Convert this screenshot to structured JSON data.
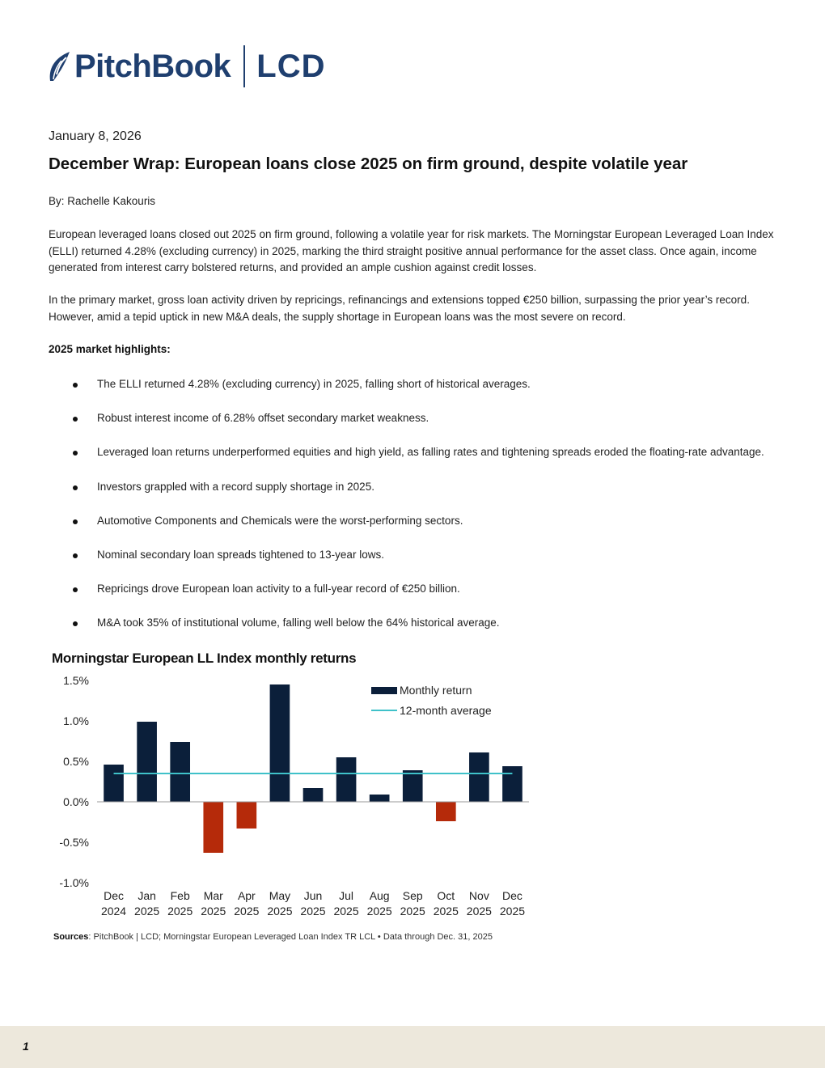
{
  "header": {
    "brand": "PitchBook",
    "product": "LCD",
    "brand_color": "#1f3f6f"
  },
  "article": {
    "date": "January 8, 2026",
    "title": "December Wrap: European loans close 2025 on firm ground, despite volatile year",
    "byline": "By: Rachelle Kakouris",
    "paragraphs": [
      "European leveraged loans closed out 2025 on firm ground, following a volatile year for risk markets. The Morningstar European Leveraged Loan Index (ELLI) returned 4.28% (excluding currency) in 2025, marking the third straight positive annual performance for the asset class. Once again, income generated from interest carry bolstered returns, and provided an ample cushion against credit losses.",
      "In the primary market, gross loan activity driven by repricings, refinancings and extensions topped €250 billion, surpassing the prior year’s record. However, amid a tepid uptick in new M&A deals, the supply shortage in European loans was the most severe on record."
    ],
    "highlights_heading": "2025 market highlights:",
    "highlights": [
      "The ELLI returned 4.28% (excluding currency) in 2025, falling short of historical averages.",
      "Robust interest income of 6.28% offset secondary market weakness.",
      "Leveraged loan returns underperformed equities and high yield, as falling rates and tightening spreads eroded the floating-rate advantage.",
      "Investors grappled with a record supply shortage in 2025.",
      "Automotive Components and Chemicals were the worst-performing sectors.",
      "Nominal secondary loan spreads tightened to 13-year lows.",
      "Repricings drove European loan activity to a full-year record of €250 billion.",
      "M&A took 35% of institutional volume, falling well below the 64% historical average."
    ]
  },
  "chart_data": {
    "type": "bar",
    "title": "Morningstar European LL Index monthly returns",
    "categories": [
      [
        "Dec",
        "2024"
      ],
      [
        "Jan",
        "2025"
      ],
      [
        "Feb",
        "2025"
      ],
      [
        "Mar",
        "2025"
      ],
      [
        "Apr",
        "2025"
      ],
      [
        "May",
        "2025"
      ],
      [
        "Jun",
        "2025"
      ],
      [
        "Jul",
        "2025"
      ],
      [
        "Aug",
        "2025"
      ],
      [
        "Sep",
        "2025"
      ],
      [
        "Oct",
        "2025"
      ],
      [
        "Nov",
        "2025"
      ],
      [
        "Dec",
        "2025"
      ]
    ],
    "series": [
      {
        "name": "Monthly return",
        "values": [
          0.46,
          0.99,
          0.74,
          -0.63,
          -0.33,
          1.45,
          0.17,
          0.55,
          0.09,
          0.39,
          -0.24,
          0.61,
          0.44
        ],
        "positive_color": "#0b1f3a",
        "negative_color": "#b52a0a"
      },
      {
        "name": "12-month average",
        "type": "line",
        "value": 0.35,
        "color": "#3fc1c9"
      }
    ],
    "ylim": [
      -1.0,
      1.5
    ],
    "yticks": [
      "1.5%",
      "1.0%",
      "0.5%",
      "0.0%",
      "-0.5%",
      "-1.0%"
    ],
    "ytick_values": [
      1.5,
      1.0,
      0.5,
      0.0,
      -0.5,
      -1.0
    ],
    "legend_position": "top-right",
    "grid": false,
    "sources_label": "Sources",
    "sources_text": ": PitchBook | LCD; Morningstar European Leveraged Loan Index TR LCL • Data through Dec. 31, 2025"
  },
  "footer": {
    "page_number": "1"
  }
}
